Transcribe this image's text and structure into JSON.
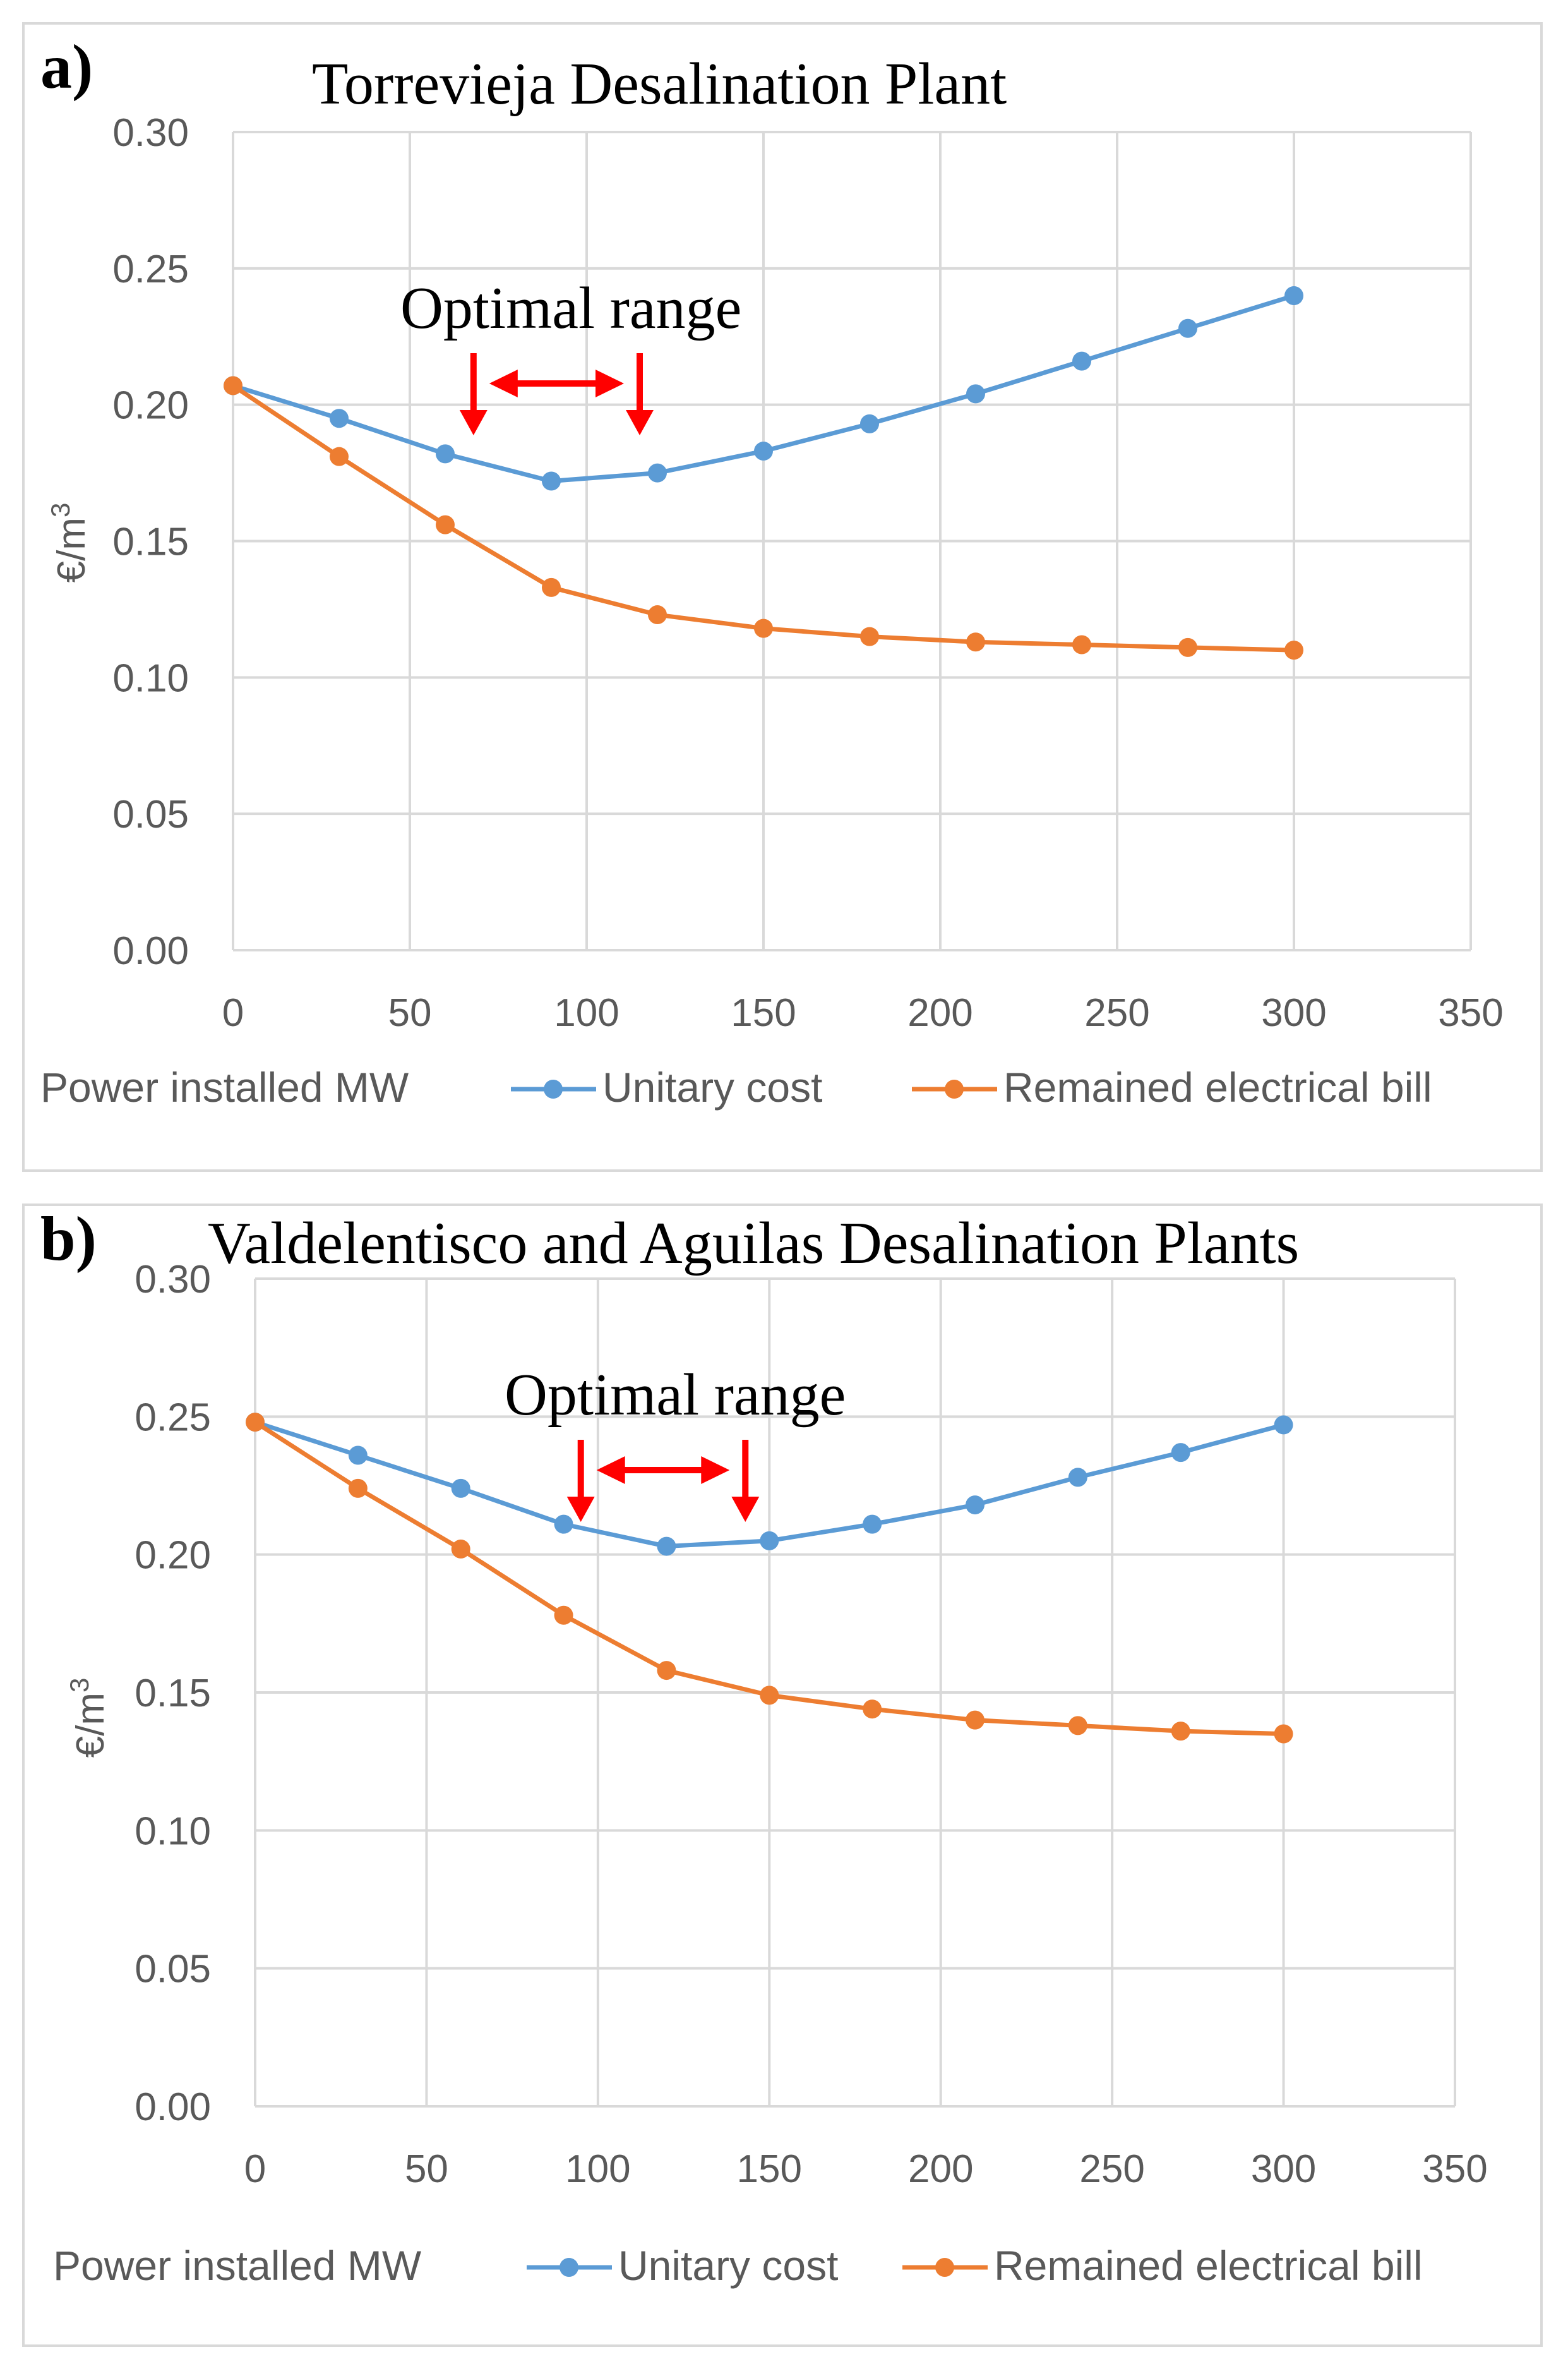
{
  "colors": {
    "unitary": "#5b9bd5",
    "remained": "#ed7d31",
    "arrow": "#ff0000",
    "grid": "#d9d9d9",
    "axis_text": "#595959"
  },
  "chart_data": [
    {
      "type": "line",
      "panel_label": "a)",
      "title": "Torrevieja Desalination Plant",
      "annotation": "Optimal range",
      "optimal_range": [
        68,
        115
      ],
      "xlabel": "Power installed MW",
      "ylabel_prefix": "€/m",
      "ylabel_sup": "3",
      "xlim": [
        0,
        350
      ],
      "ylim": [
        0,
        0.3
      ],
      "x_ticks": [
        "0",
        "50",
        "100",
        "150",
        "200",
        "250",
        "300",
        "350"
      ],
      "y_ticks": [
        "0.00",
        "0.05",
        "0.10",
        "0.15",
        "0.20",
        "0.25",
        "0.30"
      ],
      "x": [
        0,
        30,
        60,
        90,
        120,
        150,
        180,
        210,
        240,
        270,
        300
      ],
      "series": [
        {
          "name": "Unitary cost",
          "values": [
            0.207,
            0.195,
            0.182,
            0.172,
            0.175,
            0.183,
            0.193,
            0.204,
            0.216,
            0.228,
            0.24
          ]
        },
        {
          "name": "Remained electrical bill",
          "values": [
            0.207,
            0.181,
            0.156,
            0.133,
            0.123,
            0.118,
            0.115,
            0.113,
            0.112,
            0.111,
            0.11
          ]
        }
      ]
    },
    {
      "type": "line",
      "panel_label": "b)",
      "title": "Valdelentisco and Aguilas Desalination Plants",
      "annotation": "Optimal range",
      "optimal_range": [
        95,
        143
      ],
      "xlabel": "Power installed MW",
      "ylabel_prefix": "€/m",
      "ylabel_sup": "3",
      "xlim": [
        0,
        350
      ],
      "ylim": [
        0,
        0.3
      ],
      "x_ticks": [
        "0",
        "50",
        "100",
        "150",
        "200",
        "250",
        "300",
        "350"
      ],
      "y_ticks": [
        "0.00",
        "0.05",
        "0.10",
        "0.15",
        "0.20",
        "0.25",
        "0.30"
      ],
      "x": [
        0,
        30,
        60,
        90,
        120,
        150,
        180,
        210,
        240,
        270,
        300
      ],
      "series": [
        {
          "name": "Unitary cost",
          "values": [
            0.248,
            0.236,
            0.224,
            0.211,
            0.203,
            0.205,
            0.211,
            0.218,
            0.228,
            0.237,
            0.247
          ]
        },
        {
          "name": "Remained electrical bill",
          "values": [
            0.248,
            0.224,
            0.202,
            0.178,
            0.158,
            0.149,
            0.144,
            0.14,
            0.138,
            0.136,
            0.135
          ]
        }
      ]
    }
  ]
}
